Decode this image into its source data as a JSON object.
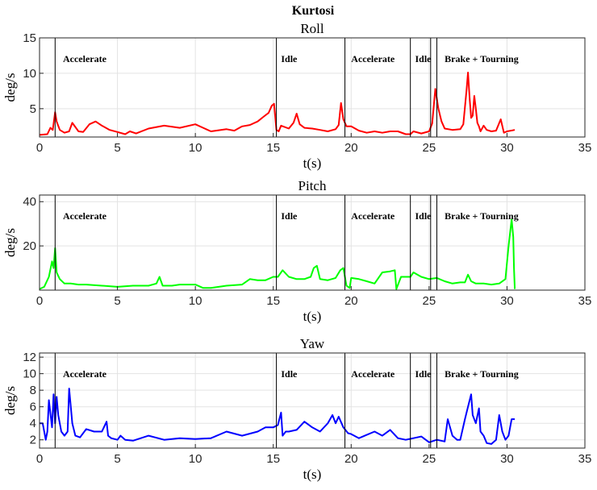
{
  "figure_title": "Kurtosi",
  "chart_data": [
    {
      "type": "line",
      "title": "Roll",
      "xlabel": "t(s)",
      "ylabel": "deg/s",
      "xlim": [
        0,
        35
      ],
      "ylim": [
        1,
        15
      ],
      "xticks": [
        0,
        5,
        10,
        15,
        20,
        25,
        30,
        35
      ],
      "yticks": [
        5,
        10,
        15
      ],
      "grid": true,
      "color": "#ff0000",
      "phase_lines": [
        1.0,
        15.2,
        19.6,
        23.8,
        25.1,
        25.5
      ],
      "phases": [
        {
          "label": "Accelerate",
          "x": 1.5
        },
        {
          "label": "Idle",
          "x": 15.5
        },
        {
          "label": "Accelerate",
          "x": 20.0
        },
        {
          "label": "Idle",
          "x": 24.1
        },
        {
          "label": "Brake + Tourning",
          "x": 26.0
        }
      ],
      "series": [
        {
          "name": "Roll",
          "x": [
            0,
            0.5,
            0.7,
            0.85,
            1.0,
            1.1,
            1.3,
            1.6,
            1.9,
            2.1,
            2.5,
            2.8,
            3.2,
            3.6,
            4.0,
            4.5,
            5.0,
            5.5,
            5.8,
            6.2,
            7.0,
            8.0,
            9.0,
            10.0,
            11.0,
            12.0,
            12.5,
            13.0,
            13.5,
            14.0,
            14.4,
            14.7,
            14.9,
            15.05,
            15.2,
            15.35,
            15.5,
            16.0,
            16.3,
            16.5,
            16.7,
            17.0,
            17.5,
            18.0,
            18.5,
            19.0,
            19.2,
            19.35,
            19.5,
            19.7,
            20.0,
            20.5,
            21.0,
            21.5,
            22.0,
            22.5,
            23.0,
            23.5,
            23.8,
            24.0,
            24.5,
            25.0,
            25.2,
            25.4,
            25.6,
            25.8,
            26.0,
            26.5,
            27.0,
            27.2,
            27.4,
            27.5,
            27.6,
            27.7,
            27.8,
            27.9,
            28.0,
            28.1,
            28.2,
            28.3,
            28.5,
            28.7,
            29.0,
            29.3,
            29.6,
            29.8,
            30.0,
            30.5
          ],
          "values": [
            1.3,
            1.4,
            2.3,
            2.0,
            4.5,
            3.2,
            2.0,
            1.6,
            1.8,
            3.0,
            1.8,
            1.7,
            2.8,
            3.2,
            2.6,
            2.0,
            1.7,
            1.4,
            1.8,
            1.5,
            2.2,
            2.6,
            2.3,
            2.8,
            1.8,
            2.1,
            1.9,
            2.5,
            2.7,
            3.2,
            3.9,
            4.4,
            5.4,
            5.7,
            2.0,
            1.8,
            2.6,
            2.2,
            3.0,
            4.3,
            2.8,
            2.3,
            2.2,
            2.0,
            1.8,
            2.1,
            2.7,
            5.8,
            3.5,
            2.5,
            2.5,
            1.9,
            1.6,
            1.8,
            1.6,
            1.8,
            1.8,
            1.4,
            1.4,
            1.8,
            1.5,
            1.8,
            2.9,
            7.8,
            5.0,
            3.2,
            2.2,
            2.0,
            2.1,
            2.8,
            7.5,
            10.1,
            6.5,
            3.7,
            4.0,
            6.8,
            5.0,
            3.0,
            2.5,
            1.8,
            2.6,
            2.0,
            1.8,
            1.9,
            3.5,
            1.6,
            1.8,
            2.0
          ]
        }
      ]
    },
    {
      "type": "line",
      "title": "Pitch",
      "xlabel": "t(s)",
      "ylabel": "deg/s",
      "xlim": [
        0,
        35
      ],
      "ylim": [
        0,
        43
      ],
      "xticks": [
        0,
        5,
        10,
        15,
        20,
        25,
        30,
        35
      ],
      "yticks": [
        20,
        40
      ],
      "grid": true,
      "color": "#00ff00",
      "phase_lines": [
        1.0,
        15.2,
        19.6,
        23.8,
        25.1,
        25.5
      ],
      "phases": [
        {
          "label": "Accelerate",
          "x": 1.5
        },
        {
          "label": "Idle",
          "x": 15.5
        },
        {
          "label": "Accelerate",
          "x": 20.0
        },
        {
          "label": "Idle",
          "x": 24.1
        },
        {
          "label": "Brake + Tourning",
          "x": 26.0
        }
      ],
      "series": [
        {
          "name": "Pitch",
          "x": [
            0,
            0.3,
            0.6,
            0.8,
            0.9,
            1.0,
            1.1,
            1.3,
            1.6,
            2.0,
            2.5,
            3.0,
            4.0,
            5.0,
            6.0,
            7.0,
            7.5,
            7.7,
            7.9,
            8.5,
            9.0,
            10.0,
            10.5,
            11.0,
            12.0,
            13.0,
            13.5,
            14.0,
            14.5,
            15.0,
            15.3,
            15.6,
            16.0,
            16.5,
            17.0,
            17.4,
            17.6,
            17.8,
            18.0,
            18.5,
            19.0,
            19.3,
            19.5,
            19.7,
            19.9,
            20.0,
            20.5,
            21.0,
            21.5,
            22.0,
            22.5,
            22.8,
            22.9,
            23.2,
            23.5,
            23.8,
            24.0,
            24.5,
            25.0,
            25.5,
            26.0,
            26.5,
            27.0,
            27.3,
            27.5,
            27.7,
            28.0,
            28.5,
            29.0,
            29.5,
            29.9,
            30.1,
            30.3,
            30.4,
            30.45,
            30.5
          ],
          "values": [
            0.5,
            1.5,
            6,
            13,
            10,
            19,
            8,
            5,
            3,
            3,
            2.5,
            2.5,
            2,
            1.5,
            2,
            2,
            3,
            6,
            2,
            2,
            2.5,
            2.5,
            1,
            1,
            2,
            2.5,
            5,
            4.5,
            4.5,
            6,
            6,
            9,
            6,
            5,
            5,
            6,
            10,
            11,
            5,
            4.5,
            5.5,
            9,
            10,
            2,
            1,
            5.5,
            5,
            4,
            3,
            8,
            8.5,
            9,
            0.5,
            6,
            6,
            6,
            8,
            6,
            5,
            5.5,
            4,
            3,
            3.5,
            3.5,
            7,
            4,
            3,
            3,
            2.5,
            3,
            5,
            20,
            32,
            24,
            10,
            0.5
          ]
        }
      ]
    },
    {
      "type": "line",
      "title": "Yaw",
      "xlabel": "t(s)",
      "ylabel": "deg/s",
      "xlim": [
        0,
        35
      ],
      "ylim": [
        1,
        12.5
      ],
      "xticks": [
        0,
        5,
        10,
        15,
        20,
        25,
        30,
        35
      ],
      "yticks": [
        2,
        4,
        6,
        8,
        10,
        12
      ],
      "grid": true,
      "color": "#0000ff",
      "phase_lines": [
        1.0,
        15.2,
        19.6,
        23.8,
        25.1,
        25.5
      ],
      "phases": [
        {
          "label": "Accelerate",
          "x": 1.5
        },
        {
          "label": "Idle",
          "x": 15.5
        },
        {
          "label": "Accelerate",
          "x": 20.0
        },
        {
          "label": "Idle",
          "x": 24.1
        },
        {
          "label": "Brake + Tourning",
          "x": 26.0
        }
      ],
      "series": [
        {
          "name": "Yaw",
          "x": [
            0,
            0.2,
            0.4,
            0.5,
            0.6,
            0.8,
            0.9,
            1.0,
            1.1,
            1.2,
            1.4,
            1.6,
            1.8,
            1.9,
            2.1,
            2.3,
            2.6,
            3.0,
            3.5,
            4.0,
            4.3,
            4.4,
            4.6,
            5.0,
            5.2,
            5.5,
            6.0,
            7.0,
            8.0,
            9.0,
            10.0,
            11.0,
            12.0,
            13.0,
            14.0,
            14.5,
            15.0,
            15.3,
            15.5,
            15.6,
            15.8,
            16.0,
            16.5,
            17.0,
            17.5,
            18.0,
            18.5,
            18.8,
            19.0,
            19.2,
            19.5,
            19.8,
            20.0,
            20.5,
            21.0,
            21.5,
            22.0,
            22.5,
            23.0,
            23.5,
            24.0,
            24.5,
            25.0,
            25.5,
            26.0,
            26.2,
            26.5,
            26.8,
            27.0,
            27.3,
            27.5,
            27.7,
            27.8,
            28.0,
            28.2,
            28.3,
            28.5,
            28.7,
            29.0,
            29.3,
            29.5,
            29.7,
            29.9,
            30.1,
            30.3,
            30.5
          ],
          "values": [
            4.0,
            4.0,
            2.0,
            3.0,
            6.8,
            3.5,
            7.5,
            4.0,
            7.2,
            5.0,
            3.0,
            2.5,
            3.0,
            8.2,
            4.0,
            2.5,
            2.3,
            3.3,
            3.0,
            3.0,
            4.2,
            2.5,
            2.2,
            2.0,
            2.5,
            2.0,
            1.9,
            2.5,
            2.0,
            2.2,
            2.1,
            2.2,
            3.0,
            2.5,
            3.0,
            3.5,
            3.5,
            3.8,
            5.3,
            2.5,
            3.0,
            3.0,
            3.2,
            4.2,
            3.5,
            3.0,
            4.0,
            5.0,
            4.0,
            4.8,
            3.5,
            2.8,
            2.7,
            2.2,
            2.6,
            3.0,
            2.5,
            3.2,
            2.2,
            2.0,
            2.2,
            2.4,
            1.7,
            2.0,
            1.8,
            4.5,
            2.5,
            2.0,
            2.0,
            4.5,
            6.0,
            7.5,
            5.0,
            4.0,
            5.8,
            3.0,
            2.5,
            1.6,
            1.5,
            2.0,
            5.0,
            3.0,
            2.0,
            2.5,
            4.5,
            4.5
          ]
        }
      ]
    }
  ]
}
